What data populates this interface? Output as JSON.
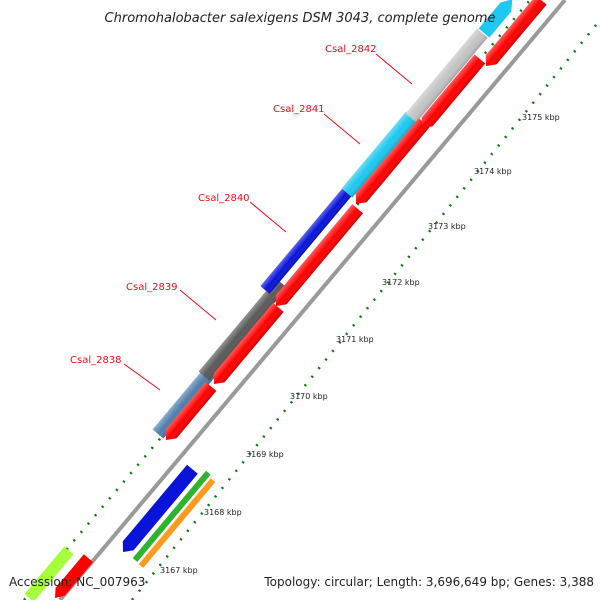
{
  "title": "Chromohalobacter salexigens DSM 3043, complete genome",
  "footer": {
    "accession": "Accession: NC_007963",
    "summary": "Topology: circular; Length: 3,696,649 bp; Genes: 3,388"
  },
  "gene_labels": [
    "Csal_2838",
    "Csal_2839",
    "Csal_2840",
    "Csal_2841",
    "Csal_2842"
  ],
  "tick_labels": [
    "3167 kbp",
    "3168 kbp",
    "3169 kbp",
    "3170 kbp",
    "3171 kbp",
    "3172 kbp",
    "3173 kbp",
    "3174 kbp",
    "3175 kbp"
  ],
  "colors": {
    "cds_reverse": "#ff0000",
    "backbone": "#9a9a9a",
    "ticks": "#0a7a0a",
    "gene_steelblue": "#4f7fae",
    "gene_darkgray": "#5a5a5a",
    "gene_blue": "#0a14d8",
    "gene_cyan": "#1ec8f0",
    "gene_lightgray": "#c4c4c4",
    "gene_lime": "#a6ff3c",
    "gene_green": "#2db42d",
    "gene_orange": "#ff9a1e"
  }
}
